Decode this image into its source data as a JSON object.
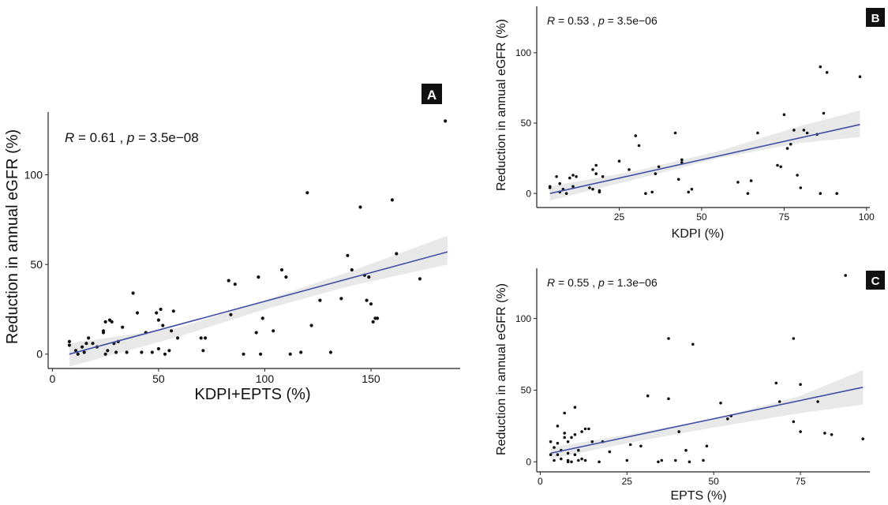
{
  "chart_data": [
    {
      "id": "A",
      "type": "scatter",
      "badge": "A",
      "xlabel": "KDPI+EPTS (%)",
      "ylabel": "Reduction in annual eGFR (%)",
      "stat_r_label": "R",
      "stat_r_text": " = 0.61 , ",
      "stat_p_label": "p",
      "stat_p_text": " = 3.5e−08",
      "xticks": [
        0,
        50,
        100,
        150
      ],
      "yticks": [
        0,
        50,
        100
      ],
      "xlim": [
        -2,
        192
      ],
      "ylim": [
        -8,
        135
      ],
      "fit": {
        "x0": 8,
        "y0": 0,
        "x1": 186,
        "y1": 57
      },
      "ci_lower": [
        [
          8,
          -7
        ],
        [
          60,
          10
        ],
        [
          100,
          25
        ],
        [
          140,
          38
        ],
        [
          186,
          50
        ]
      ],
      "ci_upper": [
        [
          8,
          6
        ],
        [
          60,
          15
        ],
        [
          100,
          30
        ],
        [
          140,
          46
        ],
        [
          186,
          66
        ]
      ],
      "x": [
        8,
        8,
        11,
        12,
        14,
        15,
        16,
        17,
        19,
        21,
        24,
        24,
        25,
        25,
        26,
        27,
        28,
        29,
        30,
        31,
        33,
        35,
        38,
        40,
        42,
        44,
        47,
        49,
        50,
        50,
        51,
        52,
        53,
        55,
        56,
        57,
        59,
        70,
        71,
        72,
        83,
        84,
        86,
        90,
        96,
        97,
        98,
        99,
        104,
        108,
        110,
        112,
        117,
        120,
        122,
        126,
        131,
        136,
        139,
        141,
        145,
        147,
        148,
        149,
        150,
        151,
        152,
        153,
        160,
        162,
        173,
        185
      ],
      "y": [
        7,
        5,
        2,
        0,
        4,
        1,
        6,
        9,
        6,
        4,
        12,
        13,
        18,
        0,
        2,
        19,
        18,
        6,
        1,
        7,
        15,
        1,
        34,
        23,
        1,
        12,
        1,
        23,
        19,
        3,
        25,
        16,
        0,
        2,
        13,
        24,
        9,
        9,
        2,
        9,
        41,
        22,
        39,
        0,
        12,
        43,
        0,
        20,
        13,
        47,
        43,
        0,
        1,
        90,
        16,
        30,
        1,
        31,
        55,
        47,
        82,
        44,
        30,
        43,
        28,
        18,
        20,
        20,
        86,
        56,
        42,
        130
      ]
    },
    {
      "id": "B",
      "type": "scatter",
      "badge": "B",
      "xlabel": "KDPI (%)",
      "ylabel": "Reduction in annual eGFR (%)",
      "stat_r_label": "R",
      "stat_r_text": " = 0.53 , ",
      "stat_p_label": "p",
      "stat_p_text": " = 3.5e−06",
      "xticks": [
        25,
        50,
        75,
        100
      ],
      "yticks": [
        0,
        50,
        100
      ],
      "xlim": [
        0,
        101
      ],
      "ylim": [
        -10,
        133
      ],
      "fit": {
        "x0": 4,
        "y0": 0,
        "x1": 98,
        "y1": 49
      },
      "ci_lower": [
        [
          4,
          -5
        ],
        [
          30,
          10
        ],
        [
          55,
          25
        ],
        [
          80,
          36
        ],
        [
          98,
          40
        ]
      ],
      "ci_upper": [
        [
          4,
          5
        ],
        [
          30,
          16
        ],
        [
          55,
          30
        ],
        [
          80,
          48
        ],
        [
          98,
          59
        ]
      ],
      "x": [
        4,
        4,
        6,
        7,
        7,
        8,
        9,
        10,
        11,
        11,
        12,
        16,
        17,
        17,
        18,
        18,
        19,
        19,
        20,
        25,
        28,
        30,
        31,
        33,
        35,
        36,
        37,
        42,
        43,
        44,
        44,
        46,
        47,
        61,
        64,
        65,
        67,
        73,
        74,
        75,
        76,
        77,
        78,
        79,
        80,
        81,
        82,
        85,
        86,
        86,
        87,
        88,
        91,
        98
      ],
      "y": [
        5,
        4,
        12,
        7,
        1,
        3,
        0,
        11,
        5,
        13,
        12,
        4,
        17,
        3,
        20,
        14,
        1,
        2,
        12,
        23,
        17,
        41,
        34,
        0,
        1,
        14,
        19,
        43,
        10,
        24,
        22,
        1,
        3,
        8,
        0,
        9,
        43,
        20,
        19,
        56,
        32,
        35,
        45,
        13,
        4,
        45,
        43,
        42,
        90,
        0,
        57,
        86,
        0,
        83
      ]
    },
    {
      "id": "C",
      "type": "scatter",
      "badge": "C",
      "xlabel": "EPTS (%)",
      "ylabel": "Reduction in annual eGFR (%)",
      "stat_r_label": "R",
      "stat_r_text": " = 0.55 , ",
      "stat_p_label": "p",
      "stat_p_text": " = 1.3e−06",
      "xticks": [
        0,
        25,
        50,
        75
      ],
      "yticks": [
        0,
        50,
        100
      ],
      "xlim": [
        -1,
        95
      ],
      "ylim": [
        -7,
        135
      ],
      "fit": {
        "x0": 3,
        "y0": 6,
        "x1": 93,
        "y1": 52
      },
      "ci_lower": [
        [
          3,
          2
        ],
        [
          25,
          13
        ],
        [
          50,
          24
        ],
        [
          75,
          34
        ],
        [
          93,
          40
        ]
      ],
      "ci_upper": [
        [
          3,
          10
        ],
        [
          25,
          19
        ],
        [
          50,
          30
        ],
        [
          75,
          46
        ],
        [
          93,
          64
        ]
      ],
      "x": [
        3,
        3,
        4,
        4,
        5,
        5,
        5,
        6,
        6,
        7,
        7,
        7,
        8,
        8,
        8,
        8,
        9,
        9,
        10,
        10,
        10,
        11,
        11,
        12,
        12,
        13,
        13,
        14,
        15,
        17,
        18,
        20,
        25,
        26,
        29,
        31,
        34,
        35,
        37,
        37,
        39,
        40,
        42,
        43,
        44,
        47,
        48,
        52,
        54,
        55,
        68,
        69,
        73,
        73,
        75,
        75,
        80,
        82,
        84,
        88,
        93
      ],
      "y": [
        14,
        5,
        10,
        1,
        13,
        5,
        25,
        2,
        8,
        17,
        34,
        20,
        0,
        14,
        6,
        1,
        17,
        0,
        5,
        19,
        38,
        1,
        8,
        2,
        21,
        23,
        1,
        23,
        14,
        0,
        14,
        7,
        1,
        12,
        11,
        46,
        0,
        1,
        44,
        86,
        1,
        21,
        8,
        0,
        82,
        1,
        11,
        41,
        30,
        32,
        55,
        42,
        86,
        28,
        54,
        21,
        42,
        20,
        19,
        130,
        16
      ]
    }
  ]
}
